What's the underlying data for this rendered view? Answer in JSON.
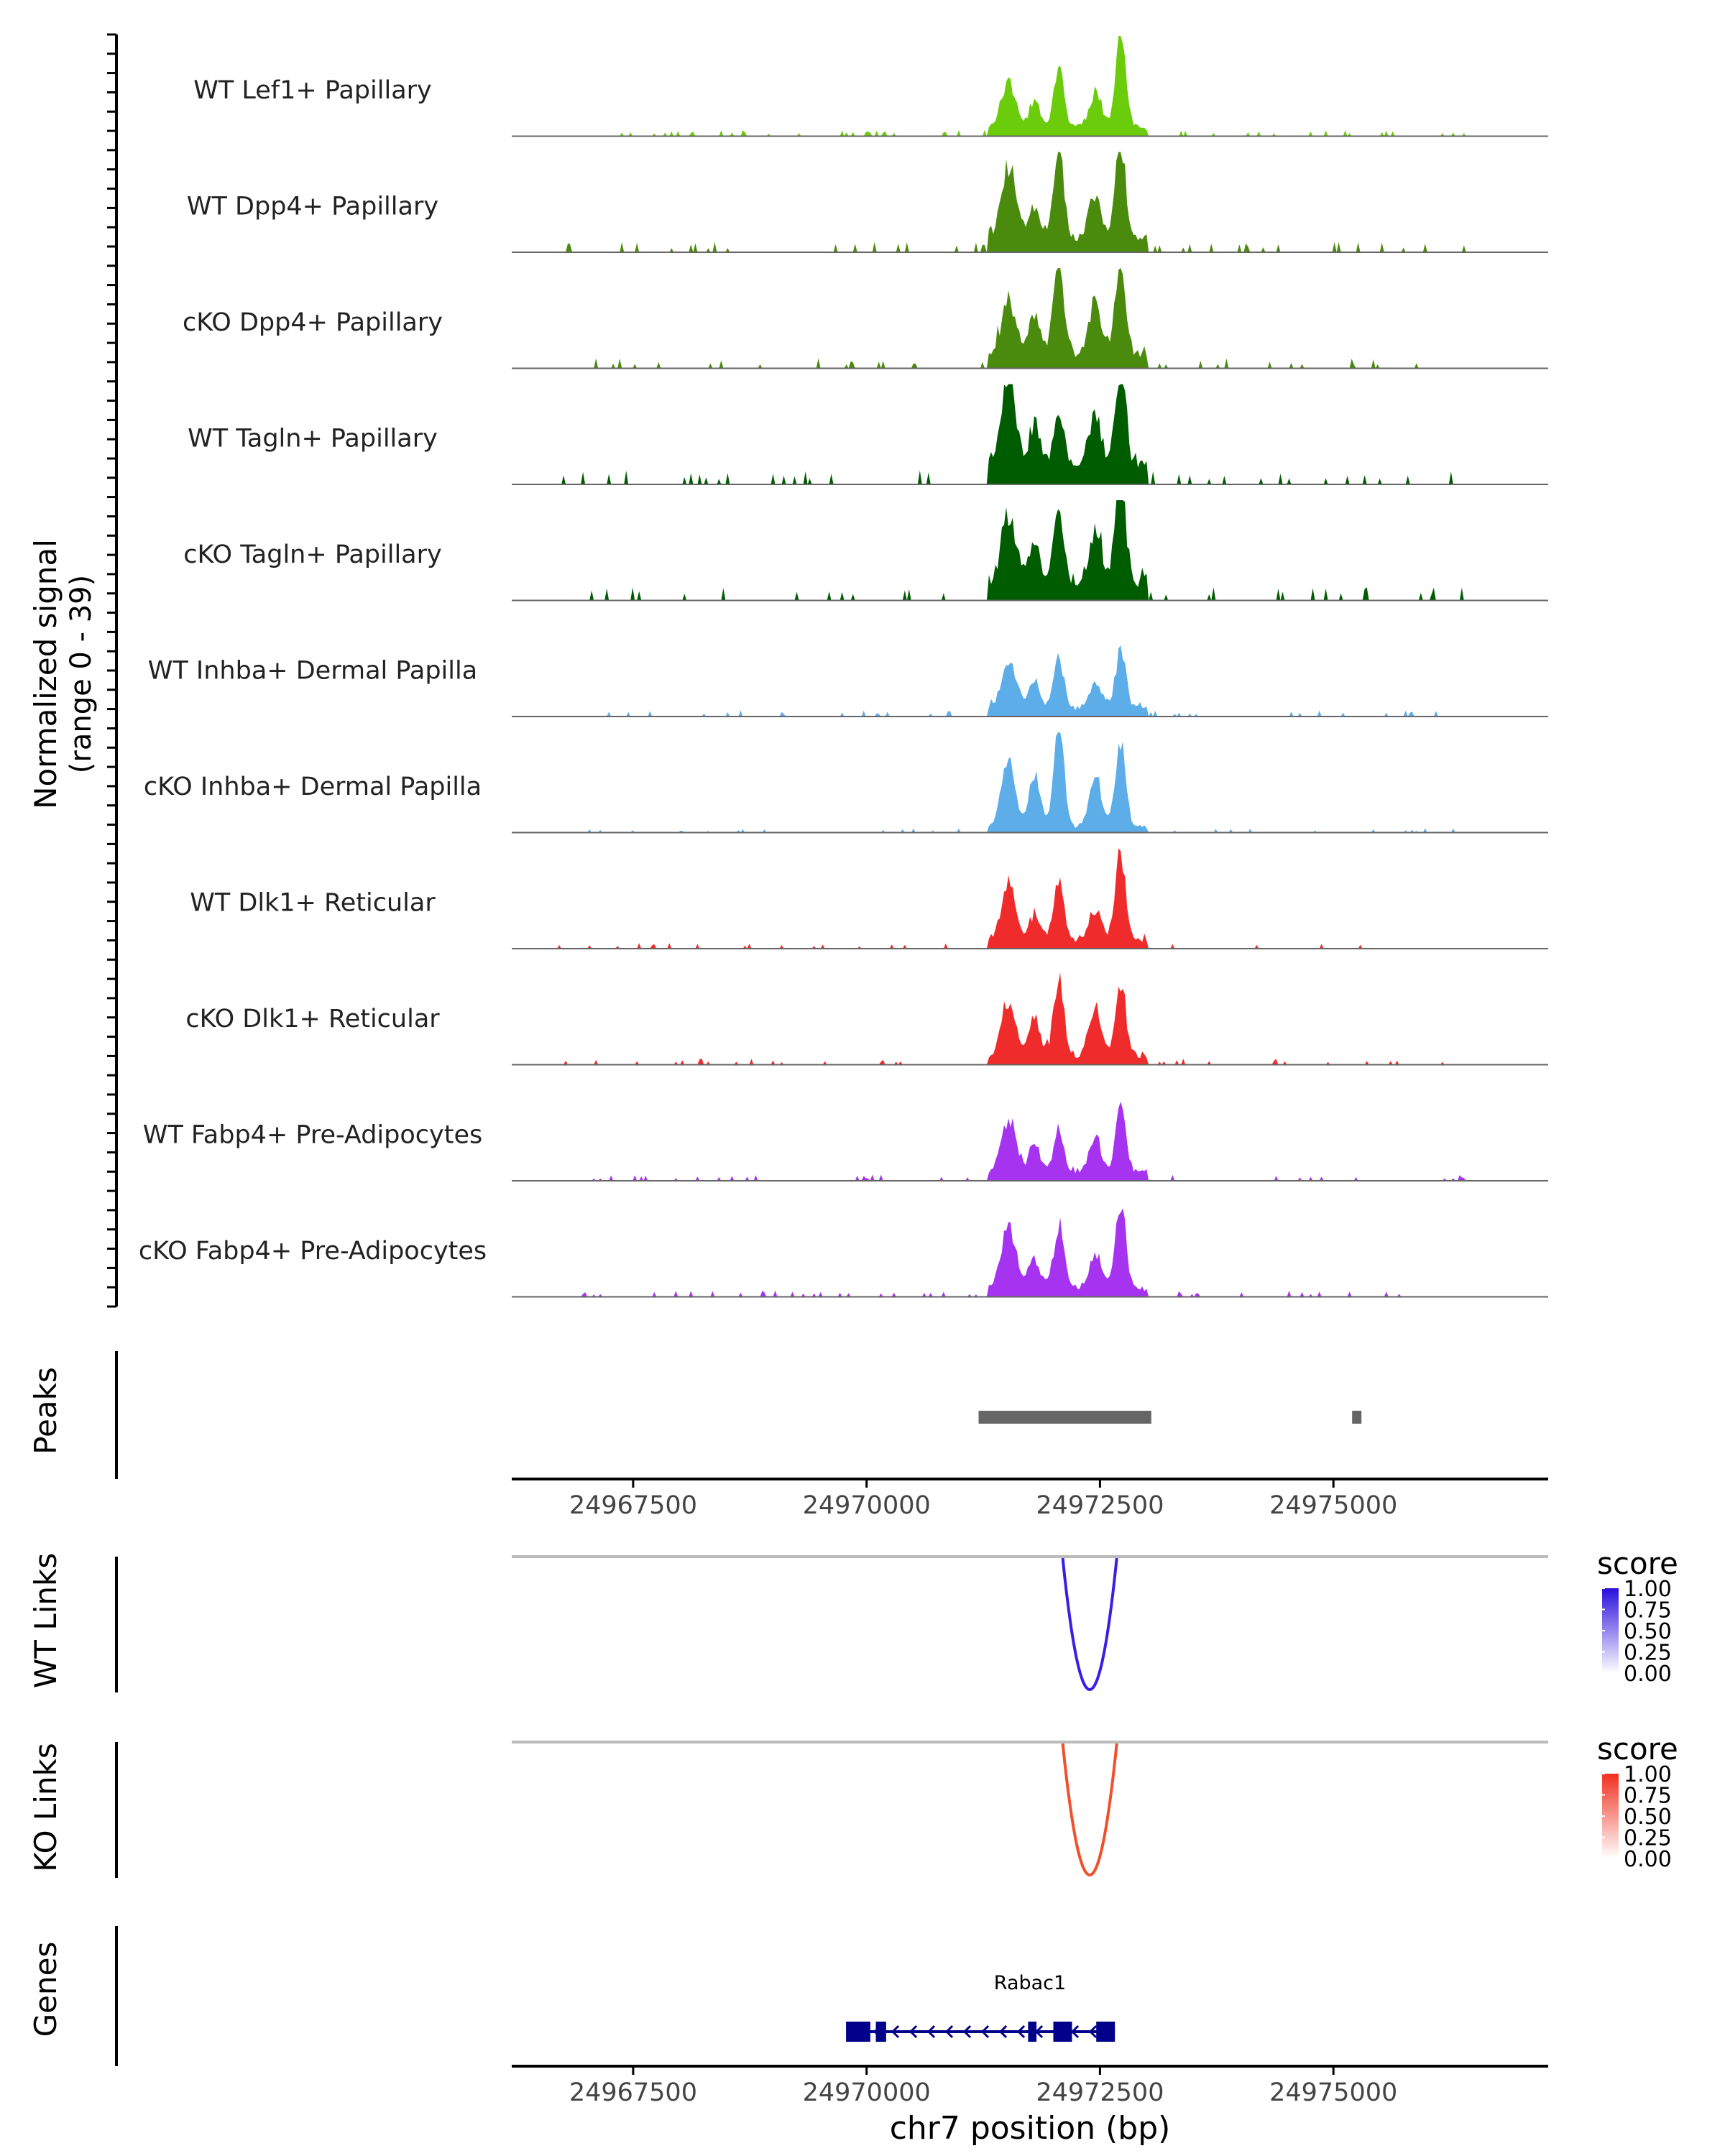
{
  "chart_data": {
    "type": "area",
    "title": "",
    "chromosome": "chr7",
    "x_range": [
      24966200,
      24977300
    ],
    "coverage": {
      "ylabel_line1": "Normalized signal",
      "ylabel_line2": "(range 0 - 39)",
      "y_range": [
        0,
        39
      ],
      "peak_positions": [
        24971520,
        24971800,
        24972060,
        24972450,
        24972720
      ],
      "tracks": [
        {
          "name": "WT Lef1+ Papillary",
          "color": "#6ACC0A",
          "peaks": [
            18,
            10,
            25,
            14,
            38
          ],
          "background": 1.5
        },
        {
          "name": "WT Dpp4+ Papillary",
          "color": "#4A8A0C",
          "peaks": [
            28,
            12,
            34,
            16,
            39
          ],
          "background": 2.5
        },
        {
          "name": "cKO Dpp4+ Papillary",
          "color": "#4A8A0C",
          "peaks": [
            22,
            16,
            36,
            20,
            33
          ],
          "background": 2.5
        },
        {
          "name": "WT Tagln+ Papillary",
          "color": "#005C00",
          "peaks": [
            35,
            16,
            18,
            20,
            39
          ],
          "background": 3.5
        },
        {
          "name": "cKO Tagln+ Papillary",
          "color": "#005C00",
          "peaks": [
            25,
            14,
            29,
            18,
            39
          ],
          "background": 3.5
        },
        {
          "name": "WT Inhba+ Dermal Papilla",
          "color": "#5DADE8",
          "peaks": [
            19,
            10,
            20,
            10,
            22
          ],
          "background": 1.5
        },
        {
          "name": "cKO Inhba+ Dermal Papilla",
          "color": "#5DADE8",
          "peaks": [
            25,
            20,
            39,
            20,
            33
          ],
          "background": 1.0
        },
        {
          "name": "WT Dlk1+ Reticular",
          "color": "#F02B2B",
          "peaks": [
            23,
            10,
            22,
            12,
            33
          ],
          "background": 1.5
        },
        {
          "name": "cKO Dlk1+ Reticular",
          "color": "#F02B2B",
          "peaks": [
            23,
            15,
            30,
            20,
            29
          ],
          "background": 1.5
        },
        {
          "name": "WT Fabp4+ Pre-Adipocytes",
          "color": "#A633F0",
          "peaks": [
            21,
            12,
            17,
            12,
            26
          ],
          "background": 1.5
        },
        {
          "name": "cKO Fabp4+ Pre-Adipocytes",
          "color": "#A633F0",
          "peaks": [
            25,
            12,
            25,
            14,
            33
          ],
          "background": 1.5
        }
      ]
    },
    "peaks_track": {
      "label": "Peaks",
      "regions": [
        [
          24971200,
          24973050
        ],
        [
          24975200,
          24975300
        ]
      ],
      "color": "#666666"
    },
    "x_axis": {
      "ticks": [
        24967500,
        24970000,
        24972500,
        24975000
      ],
      "tick_labels": [
        "24967500",
        "24970000",
        "24972500",
        "24975000"
      ],
      "xlabel": "chr7 position (bp)"
    },
    "links": [
      {
        "label": "WT Links",
        "start": 24972080,
        "end": 24972700,
        "score": 0.85,
        "color": "#3A1EE6",
        "legend": {
          "title": "score",
          "labels": [
            "1.00",
            "0.75",
            "0.50",
            "0.25",
            "0.00"
          ],
          "low_color": "#FFFFFF",
          "high_color": "#2A0FDD"
        }
      },
      {
        "label": "KO Links",
        "start": 24972080,
        "end": 24972700,
        "score": 0.85,
        "color": "#F0502B",
        "legend": {
          "title": "score",
          "labels": [
            "1.00",
            "0.75",
            "0.50",
            "0.25",
            "0.00"
          ],
          "low_color": "#FFFFFF",
          "high_color": "#F03020"
        }
      }
    ],
    "genes": {
      "label": "Genes",
      "gene_name": "Rabac1",
      "start": 24969780,
      "end": 24972660,
      "strand": "-",
      "color": "#00008B",
      "exons": [
        [
          24969780,
          24970040
        ],
        [
          24970100,
          24970210
        ],
        [
          24971730,
          24971820
        ],
        [
          24972000,
          24972200
        ],
        [
          24972460,
          24972660
        ]
      ]
    }
  }
}
